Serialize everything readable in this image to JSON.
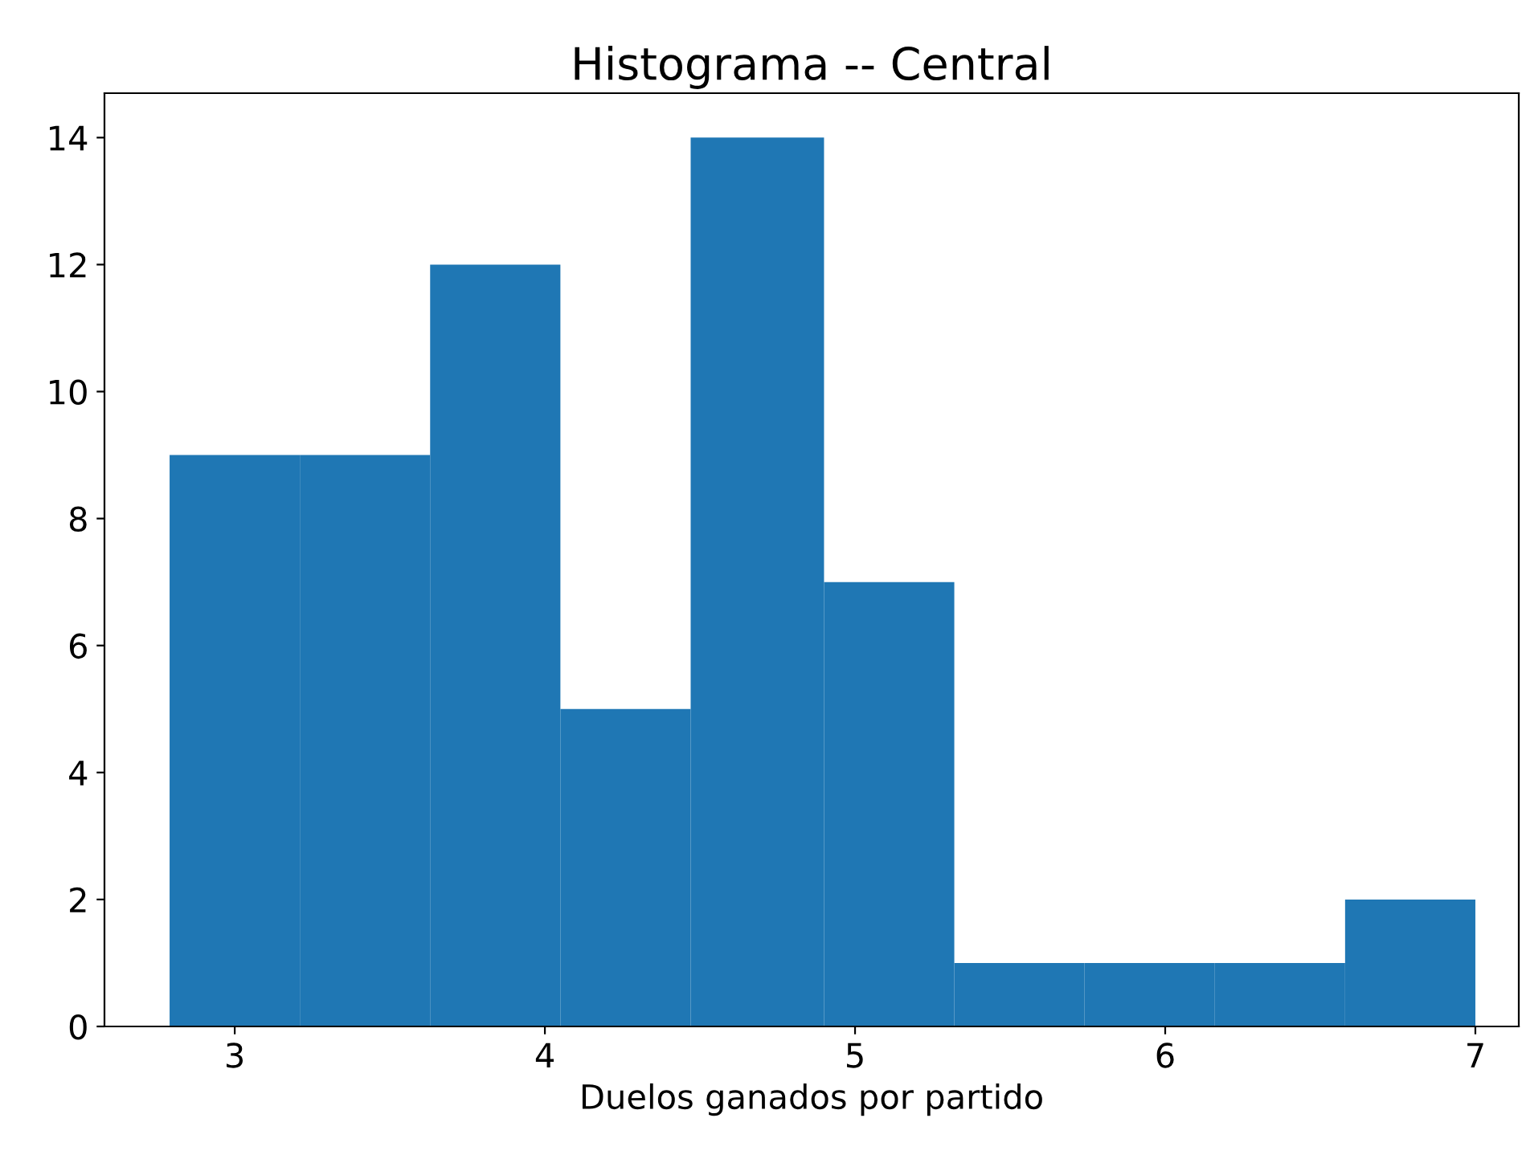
{
  "chart_data": {
    "type": "histogram",
    "title": "Histograma -- Central",
    "xlabel": "Duelos ganados por partido",
    "bins": [
      2.79,
      3.21,
      3.63,
      4.05,
      4.47,
      4.9,
      5.32,
      5.74,
      6.16,
      6.58,
      7.0
    ],
    "values": [
      9,
      9,
      12,
      5,
      14,
      7,
      1,
      1,
      1,
      2
    ],
    "color": "#1f77b4",
    "xlim": [
      2.58,
      7.14
    ],
    "xticks": [
      3,
      4,
      5,
      6,
      7
    ],
    "ylim": [
      0,
      14.7
    ],
    "yticks": [
      0,
      2,
      4,
      6,
      8,
      10,
      12,
      14
    ],
    "grid": false
  }
}
